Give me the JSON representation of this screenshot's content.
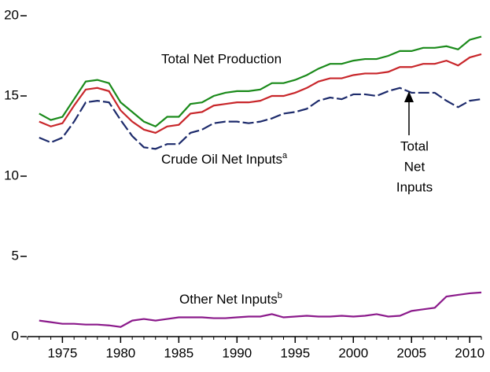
{
  "chart_data": {
    "type": "line",
    "x": [
      1973,
      1974,
      1975,
      1976,
      1977,
      1978,
      1979,
      1980,
      1981,
      1982,
      1983,
      1984,
      1985,
      1986,
      1987,
      1988,
      1989,
      1990,
      1991,
      1992,
      1993,
      1994,
      1995,
      1996,
      1997,
      1998,
      1999,
      2000,
      2001,
      2002,
      2003,
      2004,
      2005,
      2006,
      2007,
      2008,
      2009,
      2010,
      2011
    ],
    "series": [
      {
        "color": "#1a8a1a",
        "dash": false,
        "values": [
          13.9,
          13.5,
          13.7,
          14.8,
          15.9,
          16.0,
          15.8,
          14.6,
          14.0,
          13.4,
          13.1,
          13.7,
          13.7,
          14.5,
          14.6,
          15.0,
          15.2,
          15.3,
          15.3,
          15.4,
          15.8,
          15.8,
          16.0,
          16.3,
          16.7,
          17.0,
          17.0,
          17.2,
          17.3,
          17.3,
          17.5,
          17.8,
          17.8,
          18.0,
          18.0,
          18.1,
          17.9,
          18.5,
          18.7
        ]
      },
      {
        "color": "#c8262a",
        "dash": false,
        "values": [
          13.4,
          13.1,
          13.3,
          14.4,
          15.4,
          15.5,
          15.3,
          14.1,
          13.4,
          12.9,
          12.7,
          13.1,
          13.2,
          13.9,
          14.0,
          14.4,
          14.5,
          14.6,
          14.6,
          14.7,
          15.0,
          15.0,
          15.2,
          15.5,
          15.9,
          16.1,
          16.1,
          16.3,
          16.4,
          16.4,
          16.5,
          16.8,
          16.8,
          17.0,
          17.0,
          17.2,
          16.9,
          17.4,
          17.6
        ]
      },
      {
        "color": "#1c2a6b",
        "dash": true,
        "values": [
          12.4,
          12.1,
          12.4,
          13.4,
          14.6,
          14.7,
          14.6,
          13.5,
          12.5,
          11.8,
          11.7,
          12.0,
          12.0,
          12.7,
          12.9,
          13.3,
          13.4,
          13.4,
          13.3,
          13.4,
          13.6,
          13.9,
          14.0,
          14.2,
          14.7,
          14.9,
          14.8,
          15.1,
          15.1,
          15.0,
          15.3,
          15.5,
          15.2,
          15.2,
          15.2,
          14.7,
          14.3,
          14.7,
          14.8
        ]
      },
      {
        "color": "#8b1a8b",
        "dash": false,
        "values": [
          1.0,
          0.9,
          0.8,
          0.8,
          0.75,
          0.75,
          0.7,
          0.6,
          1.0,
          1.1,
          1.0,
          1.1,
          1.2,
          1.2,
          1.2,
          1.15,
          1.15,
          1.2,
          1.25,
          1.25,
          1.4,
          1.2,
          1.25,
          1.3,
          1.25,
          1.25,
          1.3,
          1.25,
          1.3,
          1.4,
          1.25,
          1.3,
          1.6,
          1.7,
          1.8,
          2.5,
          2.6,
          2.7,
          2.75
        ]
      }
    ],
    "annotations": [
      {
        "text": "Total Net Production"
      },
      {
        "text": "Crude Oil Net Inputs",
        "sup": "a"
      },
      {
        "lines": [
          "Total",
          "Net",
          "Inputs"
        ]
      },
      {
        "text": "Other Net Inputs",
        "sup": "b"
      }
    ],
    "xlim": [
      1972,
      2011
    ],
    "xticks": [
      1975,
      1980,
      1985,
      1990,
      1995,
      2000,
      2005,
      2010
    ],
    "ylim": [
      0,
      20
    ],
    "yticks": [
      0,
      5,
      10,
      15,
      20
    ]
  }
}
